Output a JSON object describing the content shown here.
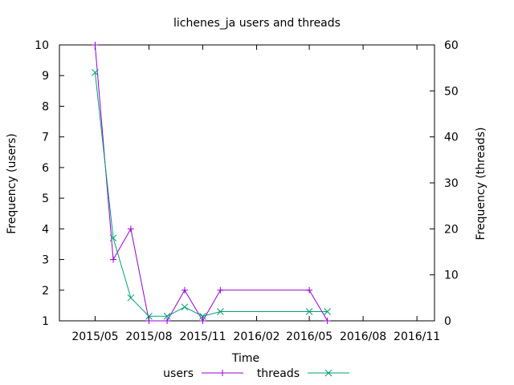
{
  "chart_data": {
    "type": "line",
    "title": "lichenes_ja users and threads",
    "xlabel": "Time",
    "ylabel_left": "Frequency (users)",
    "ylabel_right": "Frequency (threads)",
    "x_ticks": [
      "2015/05",
      "2015/08",
      "2015/11",
      "2016/02",
      "2016/05",
      "2016/08",
      "2016/11"
    ],
    "y_left_ticks": [
      "1",
      "2",
      "3",
      "4",
      "5",
      "6",
      "7",
      "8",
      "9",
      "10"
    ],
    "y_right_ticks": [
      "0",
      "10",
      "20",
      "30",
      "40",
      "50",
      "60"
    ],
    "xlim": [
      "2015-03-01",
      "2016-12-01"
    ],
    "ylim_left": [
      1,
      10
    ],
    "ylim_right": [
      0,
      60
    ],
    "grid": false,
    "legend_position": "bottom-center",
    "series": [
      {
        "name": "users",
        "axis": "left",
        "color": "#9400d3",
        "marker": "plus",
        "x": [
          "2015-05-01",
          "2015-06-01",
          "2015-07-01",
          "2015-08-01",
          "2015-09-01",
          "2015-10-01",
          "2015-11-01",
          "2015-12-01",
          "2016-05-01",
          "2016-06-01"
        ],
        "y": [
          10,
          3,
          4,
          1,
          1,
          2,
          1,
          2,
          2,
          1
        ]
      },
      {
        "name": "threads",
        "axis": "right",
        "color": "#009e73",
        "marker": "cross",
        "x": [
          "2015-05-01",
          "2015-06-01",
          "2015-07-01",
          "2015-08-01",
          "2015-09-01",
          "2015-10-01",
          "2015-11-01",
          "2015-12-01",
          "2016-05-01",
          "2016-06-01"
        ],
        "y": [
          54,
          18,
          5,
          1,
          1,
          3,
          1,
          2,
          2,
          2
        ]
      }
    ]
  }
}
